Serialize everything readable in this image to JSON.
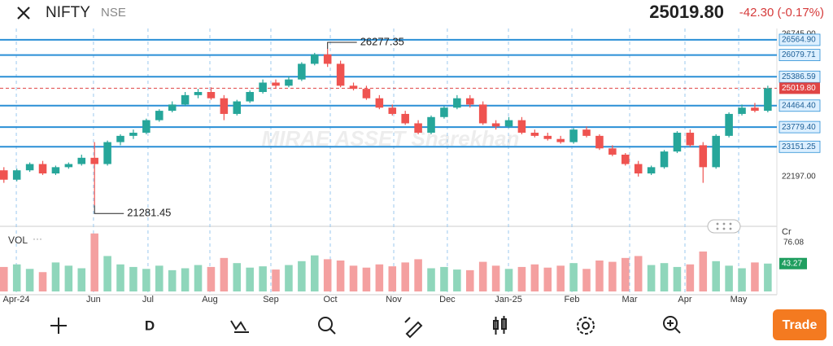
{
  "header": {
    "symbol": "NIFTY",
    "exchange": "NSE",
    "price": "25019.80",
    "change": "-42.30 (-0.17%)"
  },
  "toolbar": {
    "interval": "D",
    "button": "Trade"
  },
  "chart_data": {
    "type": "candlestick",
    "watermark": "MIRAE ASSET Sharekhan",
    "up_color": "#26a69a",
    "down_color": "#ef5350",
    "up_volume_color": "#8fd6bb",
    "down_volume_color": "#f4a0a0",
    "level_color": "#2a8fd6",
    "xlim": [
      -0.3,
      59.7
    ],
    "xticks": [
      {
        "value": 0.96,
        "label": "Apr-24"
      },
      {
        "value": 6.92,
        "label": "Jun"
      },
      {
        "value": 11.13,
        "label": "Jul"
      },
      {
        "value": 15.91,
        "label": "Aug"
      },
      {
        "value": 20.62,
        "label": "Sep"
      },
      {
        "value": 25.21,
        "label": "Oct"
      },
      {
        "value": 30.11,
        "label": "Nov"
      },
      {
        "value": 34.25,
        "label": "Dec"
      },
      {
        "value": 38.97,
        "label": "Jan-25"
      },
      {
        "value": 43.87,
        "label": "Feb"
      },
      {
        "value": 48.33,
        "label": "Mar"
      },
      {
        "value": 52.6,
        "label": "Apr"
      },
      {
        "value": 56.75,
        "label": "May"
      }
    ],
    "ylim": [
      20612,
      26927
    ],
    "yticks": [
      {
        "value": 26745,
        "label": "26745.00"
      },
      {
        "value": 22197,
        "label": "22197.00"
      }
    ],
    "levels": [
      {
        "value": 26564.9,
        "label": "26564.90"
      },
      {
        "value": 26079.71,
        "label": "26079.71"
      },
      {
        "value": 25386.59,
        "label": "25386.59"
      },
      {
        "value": 24464.4,
        "label": "24464.40"
      },
      {
        "value": 23779.4,
        "label": "23779.40"
      },
      {
        "value": 23151.25,
        "label": "23151.25"
      }
    ],
    "last_price": {
      "value": 25019.8,
      "label": "25019.80"
    },
    "annotations": [
      {
        "value": 26277.35,
        "label": "26277.35"
      },
      {
        "value": 21281.45,
        "label": "21281.45"
      }
    ],
    "open": [
      22400,
      22100,
      22400,
      22600,
      22300,
      22500,
      22600,
      22800,
      22600,
      23300,
      23500,
      23600,
      24000,
      24300,
      24500,
      24800,
      24900,
      24700,
      24200,
      24600,
      24900,
      25200,
      25100,
      25300,
      25800,
      26100,
      25800,
      25100,
      25000,
      24700,
      24400,
      24200,
      23900,
      23600,
      24100,
      24400,
      24700,
      24500,
      23900,
      23800,
      24000,
      23600,
      23500,
      23400,
      23300,
      23700,
      23500,
      23100,
      22900,
      22600,
      22300,
      22500,
      23000,
      23600,
      23200,
      22500,
      23500,
      24200,
      24400,
      24300
    ],
    "high": [
      22500,
      22450,
      22650,
      22700,
      22550,
      22650,
      22900,
      23300,
      23350,
      23550,
      23700,
      24050,
      24350,
      24600,
      24900,
      25000,
      25050,
      24800,
      24650,
      24950,
      25300,
      25300,
      25400,
      25850,
      26150,
      26277.35,
      25900,
      25200,
      25100,
      24800,
      24500,
      24300,
      24000,
      24150,
      24450,
      24800,
      24800,
      24600,
      24000,
      24100,
      24100,
      23700,
      23600,
      23500,
      23750,
      23800,
      23550,
      23200,
      22950,
      22700,
      22550,
      23050,
      23650,
      23700,
      23300,
      23550,
      24250,
      24500,
      24550,
      25100
    ],
    "low": [
      22000,
      22050,
      22350,
      22250,
      22250,
      22450,
      22550,
      21281.45,
      22550,
      23200,
      23400,
      23550,
      23950,
      24250,
      24450,
      24700,
      24650,
      24000,
      24150,
      24550,
      24850,
      25000,
      25050,
      25250,
      25750,
      25700,
      25050,
      24950,
      24650,
      24350,
      24150,
      23850,
      23550,
      23550,
      24050,
      24350,
      24400,
      23850,
      23700,
      23750,
      23550,
      23450,
      23350,
      23250,
      23250,
      23450,
      23050,
      22850,
      22550,
      22200,
      22250,
      22450,
      22950,
      23150,
      22000,
      22450,
      23450,
      24150,
      24250,
      24250
    ],
    "close": [
      22100,
      22400,
      22600,
      22300,
      22500,
      22600,
      22800,
      22600,
      23300,
      23500,
      23600,
      24000,
      24300,
      24500,
      24800,
      24900,
      24700,
      24200,
      24600,
      24900,
      25200,
      25100,
      25300,
      25800,
      26100,
      25800,
      25100,
      25000,
      24700,
      24400,
      24200,
      23900,
      23600,
      24100,
      24400,
      24700,
      24500,
      23900,
      23800,
      24000,
      23600,
      23500,
      23400,
      23300,
      23700,
      23500,
      23100,
      22900,
      22600,
      22300,
      22500,
      23000,
      23600,
      23200,
      22500,
      23500,
      24200,
      24400,
      24300,
      25019.8
    ],
    "volume_label": "VOL",
    "y2_label": "Cr",
    "y2lim": [
      0,
      93.5
    ],
    "y2ticks": [
      76.08
    ],
    "volume": [
      38,
      42,
      35,
      30,
      45,
      40,
      36,
      90,
      55,
      42,
      38,
      35,
      40,
      33,
      36,
      41,
      38,
      52,
      44,
      37,
      39,
      34,
      41,
      47,
      56,
      50,
      48,
      40,
      37,
      42,
      39,
      45,
      50,
      36,
      38,
      34,
      33,
      46,
      40,
      35,
      38,
      42,
      37,
      40,
      44,
      35,
      48,
      46,
      52,
      55,
      41,
      44,
      38,
      42,
      62,
      47,
      40,
      36,
      45,
      43.27
    ],
    "last_volume": {
      "value": 43.27,
      "label": "43.27"
    }
  }
}
